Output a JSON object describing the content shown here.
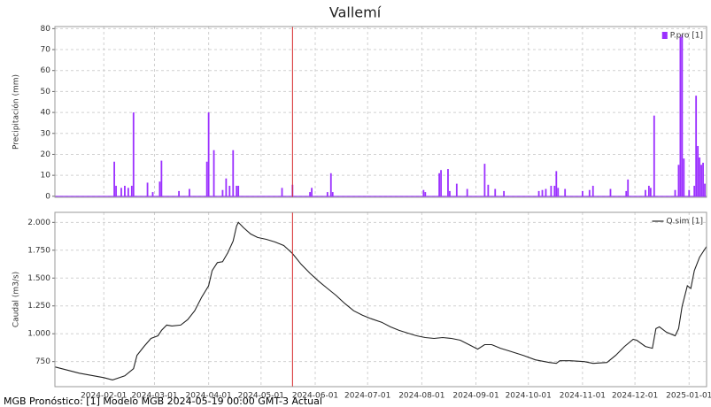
{
  "title": "Vallemí",
  "footer": "MGB Pronóstico: [1] Modelo MGB 2024-05-19 00:00 GMT-3 Actual",
  "chart_data": [
    {
      "type": "bar",
      "ylabel": "Precipitación (mm)",
      "xlim": [
        "2024-01-04",
        "2025-01-11"
      ],
      "xticks": [
        "2024-02-01",
        "2024-03-01",
        "2024-04-01",
        "2024-05-01",
        "2024-06-01",
        "2024-07-01",
        "2024-08-01",
        "2024-09-01",
        "2024-10-01",
        "2024-11-01",
        "2024-12-01",
        "2025-01-01"
      ],
      "ylim": [
        -0.5,
        81
      ],
      "yticks": [
        0,
        10,
        20,
        30,
        40,
        50,
        60,
        70,
        80
      ],
      "grid": true,
      "legend": "upper right",
      "vline": "2024-05-19",
      "vline_color": "#d62728",
      "series": [
        {
          "name": "P.pro [1]",
          "color": "#9b30ff",
          "x": [
            "2024-02-07",
            "2024-02-08",
            "2024-02-11",
            "2024-02-13",
            "2024-02-15",
            "2024-02-17",
            "2024-02-18",
            "2024-02-26",
            "2024-02-29",
            "2024-03-04",
            "2024-03-05",
            "2024-03-15",
            "2024-03-21",
            "2024-03-31",
            "2024-04-01",
            "2024-04-04",
            "2024-04-09",
            "2024-04-11",
            "2024-04-13",
            "2024-04-15",
            "2024-04-17",
            "2024-04-18",
            "2024-05-13",
            "2024-05-19",
            "2024-05-29",
            "2024-05-30",
            "2024-06-08",
            "2024-06-10",
            "2024-06-11",
            "2024-08-02",
            "2024-08-03",
            "2024-08-11",
            "2024-08-12",
            "2024-08-16",
            "2024-08-17",
            "2024-08-21",
            "2024-08-27",
            "2024-09-06",
            "2024-09-08",
            "2024-09-12",
            "2024-09-17",
            "2024-10-07",
            "2024-10-09",
            "2024-10-11",
            "2024-10-14",
            "2024-10-16",
            "2024-10-17",
            "2024-10-18",
            "2024-10-22",
            "2024-11-01",
            "2024-11-05",
            "2024-11-07",
            "2024-11-17",
            "2024-11-26",
            "2024-11-27",
            "2024-12-07",
            "2024-12-09",
            "2024-12-10",
            "2024-12-12",
            "2024-12-24",
            "2024-12-26",
            "2024-12-27",
            "2024-12-28",
            "2024-12-29",
            "2025-01-01",
            "2025-01-04",
            "2025-01-05",
            "2025-01-06",
            "2025-01-07",
            "2025-01-08",
            "2025-01-09",
            "2025-01-10"
          ],
          "values": [
            16.5,
            5,
            4,
            5,
            4,
            5,
            40,
            6.5,
            2,
            7,
            17,
            2.5,
            3.5,
            16.5,
            40,
            22,
            3,
            8.5,
            5,
            22,
            5,
            5,
            4,
            5.5,
            2,
            4,
            2,
            11,
            2,
            3,
            2,
            11,
            12.5,
            13,
            2.5,
            6,
            3.5,
            15.5,
            5.5,
            3.5,
            2.5,
            2.5,
            3,
            3.5,
            5,
            5,
            12,
            4,
            3.5,
            2.5,
            3,
            5,
            3.5,
            2.5,
            8,
            3,
            5,
            4,
            38.5,
            3,
            15,
            76,
            77,
            18,
            3,
            5,
            48,
            24,
            18.5,
            15,
            16,
            6
          ]
        }
      ]
    },
    {
      "type": "line",
      "ylabel": "Caudal (m3/s)",
      "xlim": [
        "2024-01-04",
        "2025-01-11"
      ],
      "xticks": [
        "2024-02-01",
        "2024-03-01",
        "2024-04-01",
        "2024-05-01",
        "2024-06-01",
        "2024-07-01",
        "2024-08-01",
        "2024-09-01",
        "2024-10-01",
        "2024-11-01",
        "2024-12-01",
        "2025-01-01"
      ],
      "ylim": [
        525,
        2090
      ],
      "yticks": [
        {
          "value": 750,
          "label": "750"
        },
        {
          "value": 1000,
          "label": "1.000"
        },
        {
          "value": 1250,
          "label": "1.250"
        },
        {
          "value": 1500,
          "label": "1.500"
        },
        {
          "value": 1750,
          "label": "1.750"
        },
        {
          "value": 2000,
          "label": "2.000"
        }
      ],
      "grid": true,
      "legend": "upper right",
      "vline": "2024-05-19",
      "vline_color": "#d62728",
      "series": [
        {
          "name": "Q.sim [1]",
          "color": "#222222",
          "x": [
            "2024-01-04",
            "2024-01-18",
            "2024-02-01",
            "2024-02-06",
            "2024-02-13",
            "2024-02-18",
            "2024-02-20",
            "2024-02-24",
            "2024-02-28",
            "2024-03-03",
            "2024-03-05",
            "2024-03-08",
            "2024-03-11",
            "2024-03-16",
            "2024-03-20",
            "2024-03-24",
            "2024-03-28",
            "2024-04-01",
            "2024-04-03",
            "2024-04-06",
            "2024-04-09",
            "2024-04-12",
            "2024-04-15",
            "2024-04-17",
            "2024-04-18",
            "2024-04-21",
            "2024-04-25",
            "2024-04-29",
            "2024-05-04",
            "2024-05-09",
            "2024-05-14",
            "2024-05-19",
            "2024-05-24",
            "2024-05-29",
            "2024-06-03",
            "2024-06-08",
            "2024-06-13",
            "2024-06-18",
            "2024-06-23",
            "2024-06-28",
            "2024-07-03",
            "2024-07-09",
            "2024-07-14",
            "2024-07-19",
            "2024-07-24",
            "2024-07-29",
            "2024-08-03",
            "2024-08-08",
            "2024-08-13",
            "2024-08-18",
            "2024-08-23",
            "2024-08-28",
            "2024-09-02",
            "2024-09-06",
            "2024-09-10",
            "2024-09-15",
            "2024-09-20",
            "2024-09-28",
            "2024-10-05",
            "2024-10-13",
            "2024-10-17",
            "2024-10-19",
            "2024-10-25",
            "2024-11-02",
            "2024-11-07",
            "2024-11-15",
            "2024-11-20",
            "2024-11-25",
            "2024-11-30",
            "2024-12-02",
            "2024-12-07",
            "2024-12-11",
            "2024-12-13",
            "2024-12-15",
            "2024-12-19",
            "2024-12-24",
            "2024-12-26",
            "2024-12-28",
            "2024-12-31",
            "2025-01-02",
            "2025-01-04",
            "2025-01-07",
            "2025-01-11"
          ],
          "values": [
            702,
            646,
            606,
            585,
            622,
            686,
            806,
            886,
            958,
            982,
            1030,
            1078,
            1070,
            1078,
            1127,
            1207,
            1327,
            1431,
            1567,
            1639,
            1647,
            1728,
            1832,
            1968,
            2000,
            1952,
            1896,
            1864,
            1848,
            1824,
            1792,
            1720,
            1623,
            1543,
            1471,
            1407,
            1343,
            1271,
            1207,
            1167,
            1135,
            1103,
            1062,
            1030,
            1006,
            982,
            966,
            958,
            966,
            958,
            942,
            902,
            862,
            902,
            902,
            870,
            846,
            806,
            766,
            742,
            734,
            758,
            758,
            750,
            734,
            742,
            806,
            886,
            950,
            942,
            886,
            870,
            1046,
            1062,
            1014,
            982,
            1046,
            1247,
            1431,
            1407,
            1567,
            1687,
            1784
          ]
        }
      ]
    }
  ]
}
